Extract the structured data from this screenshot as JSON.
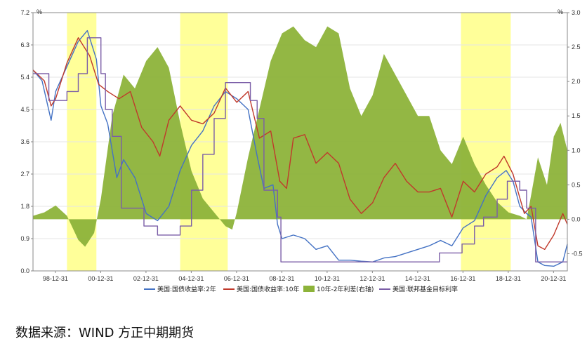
{
  "source_text": "数据来源：WIND 方正中期期货",
  "chart_data": {
    "type": "line",
    "left_unit": "%",
    "right_unit": "%",
    "x_tick_labels": [
      "98-12-31",
      "00-12-31",
      "02-12-31",
      "04-12-31",
      "06-12-31",
      "08-12-31",
      "10-12-31",
      "12-12-31",
      "14-12-31",
      "16-12-31",
      "18-12-31",
      "20-12-31"
    ],
    "x_range": [
      1998.0,
      2021.6
    ],
    "left_ticks": [
      "0.0",
      "0.9",
      "1.8",
      "2.7",
      "3.6",
      "4.5",
      "5.4",
      "6.3",
      "7.2"
    ],
    "left_range": [
      0,
      7.2
    ],
    "right_ticks": [
      "-0.5",
      "0.0",
      "0.5",
      "1.0",
      "1.5",
      "2.0",
      "2.5",
      "3.0"
    ],
    "right_range": [
      -0.75,
      3.0
    ],
    "shaded_periods": [
      [
        1999.5,
        2000.8
      ],
      [
        2004.5,
        2006.6
      ],
      [
        2016.9,
        2019.1
      ]
    ],
    "shade_color": "#ffff99",
    "series": [
      {
        "name": "美国:国债收益率:2年",
        "type": "line",
        "axis": "left",
        "color": "#4472c4",
        "x": [
          1998.0,
          1998.4,
          1998.8,
          1999.0,
          1999.5,
          2000.0,
          2000.4,
          2000.8,
          2001.0,
          2001.3,
          2001.7,
          2002.0,
          2002.5,
          2003.0,
          2003.5,
          2004.0,
          2004.5,
          2005.0,
          2005.5,
          2006.0,
          2006.5,
          2007.0,
          2007.5,
          2007.9,
          2008.2,
          2008.6,
          2008.8,
          2009.0,
          2009.5,
          2010.0,
          2010.5,
          2011.0,
          2011.5,
          2012.0,
          2012.5,
          2013.0,
          2013.5,
          2014.0,
          2014.5,
          2015.0,
          2015.5,
          2016.0,
          2016.5,
          2017.0,
          2017.5,
          2018.0,
          2018.5,
          2018.9,
          2019.2,
          2019.5,
          2019.8,
          2020.0,
          2020.3,
          2020.6,
          2021.0,
          2021.4,
          2021.6
        ],
        "values": [
          5.6,
          5.3,
          4.2,
          5.0,
          5.7,
          6.4,
          6.7,
          5.9,
          4.6,
          4.1,
          2.6,
          3.1,
          2.6,
          1.6,
          1.4,
          1.8,
          2.8,
          3.5,
          3.9,
          4.6,
          5.0,
          4.8,
          4.5,
          3.2,
          2.3,
          2.4,
          1.3,
          0.9,
          1.0,
          0.9,
          0.6,
          0.7,
          0.3,
          0.3,
          0.27,
          0.25,
          0.36,
          0.4,
          0.5,
          0.6,
          0.7,
          0.85,
          0.7,
          1.2,
          1.4,
          2.1,
          2.6,
          2.8,
          2.5,
          1.8,
          1.6,
          1.5,
          0.25,
          0.15,
          0.13,
          0.25,
          0.75
        ]
      },
      {
        "name": "美国:国债收益率:10年",
        "type": "line",
        "axis": "left",
        "color": "#c0392b",
        "x": [
          1998.0,
          1998.5,
          1998.8,
          1999.0,
          1999.5,
          2000.0,
          2000.5,
          2000.9,
          2001.3,
          2001.8,
          2002.3,
          2002.8,
          2003.3,
          2003.6,
          2004.0,
          2004.5,
          2005.0,
          2005.5,
          2006.0,
          2006.5,
          2007.0,
          2007.5,
          2008.0,
          2008.5,
          2008.9,
          2009.2,
          2009.5,
          2010.0,
          2010.5,
          2011.0,
          2011.5,
          2012.0,
          2012.5,
          2013.0,
          2013.5,
          2014.0,
          2014.5,
          2015.0,
          2015.5,
          2016.0,
          2016.5,
          2017.0,
          2017.5,
          2018.0,
          2018.5,
          2018.8,
          2019.2,
          2019.7,
          2020.0,
          2020.3,
          2020.6,
          2021.0,
          2021.4,
          2021.6
        ],
        "values": [
          5.6,
          5.3,
          4.6,
          4.8,
          5.8,
          6.5,
          6.0,
          5.2,
          5.0,
          4.8,
          5.0,
          4.0,
          3.6,
          3.2,
          4.2,
          4.6,
          4.2,
          4.1,
          4.4,
          5.1,
          4.7,
          5.0,
          3.7,
          3.9,
          2.5,
          2.3,
          3.7,
          3.8,
          3.0,
          3.3,
          3.0,
          2.0,
          1.6,
          1.9,
          2.6,
          3.0,
          2.5,
          2.2,
          2.2,
          2.3,
          1.5,
          2.5,
          2.2,
          2.7,
          2.9,
          3.2,
          2.7,
          1.6,
          1.8,
          0.7,
          0.6,
          1.0,
          1.6,
          1.3
        ]
      },
      {
        "name": "10年-2年利差(右轴)",
        "type": "area",
        "axis": "right",
        "color": "#8db33a",
        "x": [
          1998.0,
          1998.5,
          1999.0,
          1999.5,
          2000.0,
          2000.3,
          2000.7,
          2001.0,
          2001.5,
          2002.0,
          2002.5,
          2003.0,
          2003.5,
          2004.0,
          2004.5,
          2005.0,
          2005.5,
          2006.0,
          2006.5,
          2006.8,
          2007.0,
          2007.5,
          2008.0,
          2008.5,
          2009.0,
          2009.5,
          2010.0,
          2010.5,
          2011.0,
          2011.5,
          2012.0,
          2012.5,
          2013.0,
          2013.5,
          2014.0,
          2014.5,
          2015.0,
          2015.5,
          2016.0,
          2016.5,
          2017.0,
          2017.5,
          2018.0,
          2018.5,
          2019.0,
          2019.5,
          2019.8,
          2020.0,
          2020.3,
          2020.7,
          2021.0,
          2021.3,
          2021.6
        ],
        "values": [
          0.05,
          0.1,
          0.2,
          0.05,
          -0.3,
          -0.4,
          -0.2,
          0.3,
          1.5,
          2.1,
          1.9,
          2.3,
          2.5,
          2.2,
          1.4,
          0.7,
          0.3,
          0.1,
          -0.1,
          -0.15,
          0.1,
          0.9,
          1.6,
          2.3,
          2.7,
          2.8,
          2.6,
          2.5,
          2.8,
          2.7,
          1.9,
          1.5,
          1.8,
          2.4,
          2.1,
          1.8,
          1.5,
          1.5,
          1.0,
          0.8,
          1.2,
          0.8,
          0.5,
          0.25,
          0.1,
          0.05,
          0.0,
          0.35,
          0.9,
          0.5,
          1.2,
          1.4,
          1.0
        ]
      },
      {
        "name": "美国:联邦基金目标利率",
        "type": "step",
        "axis": "left",
        "color": "#7b5ea7",
        "x": [
          1998.0,
          1998.7,
          1999.5,
          2000.0,
          2000.4,
          2001.0,
          2001.2,
          2001.5,
          2001.9,
          2002.9,
          2003.5,
          2004.5,
          2005.0,
          2005.5,
          2006.0,
          2006.5,
          2007.6,
          2007.9,
          2008.2,
          2008.8,
          2008.95,
          2015.95,
          2016.95,
          2017.5,
          2017.9,
          2018.5,
          2018.95,
          2019.5,
          2019.8,
          2020.2,
          2021.6
        ],
        "values": [
          5.5,
          4.75,
          5.0,
          5.5,
          6.5,
          5.5,
          4.5,
          3.75,
          1.75,
          1.25,
          1.0,
          1.25,
          2.25,
          3.25,
          4.25,
          5.25,
          4.75,
          4.25,
          2.25,
          1.5,
          0.25,
          0.5,
          0.75,
          1.25,
          1.5,
          2.0,
          2.5,
          2.25,
          1.75,
          0.25,
          0.25
        ]
      }
    ]
  }
}
